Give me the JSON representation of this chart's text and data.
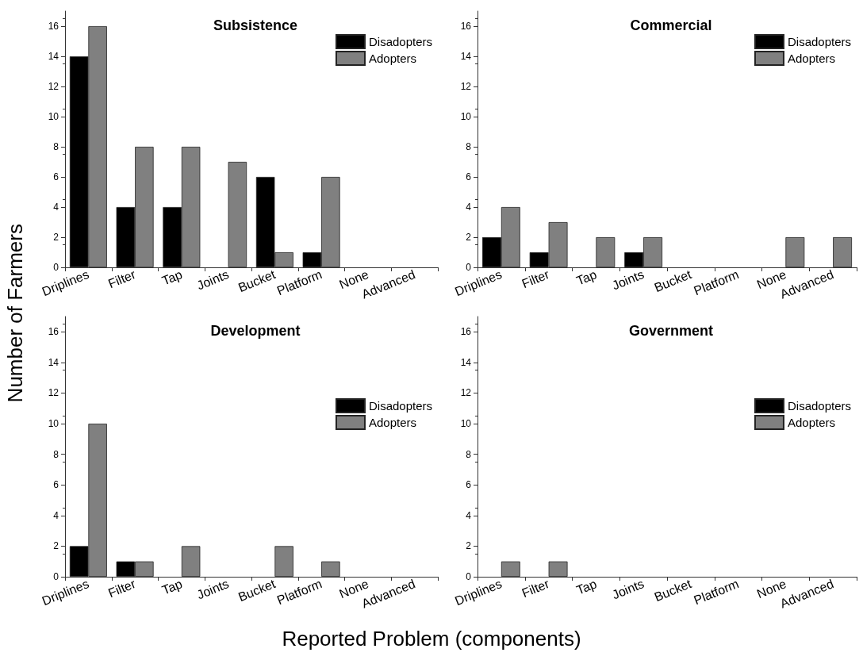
{
  "chart_data": [
    {
      "type": "bar",
      "title": "Subsistence",
      "ylabel": "Number of Farmers",
      "categories": [
        "Driplines",
        "Filter",
        "Tap",
        "Joints",
        "Bucket",
        "Platform",
        "None",
        "Advanced"
      ],
      "series": [
        {
          "name": "Disadopters",
          "color": "#000000",
          "values": [
            14,
            4,
            4,
            0,
            6,
            1,
            0,
            0
          ]
        },
        {
          "name": "Adopters",
          "color": "#808080",
          "values": [
            16,
            8,
            8,
            7,
            1,
            6,
            0,
            0
          ]
        }
      ],
      "ylim": [
        0,
        17
      ],
      "yticks": [
        0,
        2,
        4,
        6,
        8,
        10,
        12,
        14,
        16
      ],
      "grid": false,
      "legend": "top right"
    },
    {
      "type": "bar",
      "title": "Commercial",
      "categories": [
        "Driplines",
        "Filter",
        "Tap",
        "Joints",
        "Bucket",
        "Platform",
        "None",
        "Advanced"
      ],
      "series": [
        {
          "name": "Disadopters",
          "color": "#000000",
          "values": [
            2,
            1,
            0,
            1,
            0,
            0,
            0,
            0
          ]
        },
        {
          "name": "Adopters",
          "color": "#808080",
          "values": [
            4,
            3,
            2,
            2,
            0,
            0,
            2,
            2
          ]
        }
      ],
      "ylim": [
        0,
        17
      ],
      "yticks": [
        0,
        2,
        4,
        6,
        8,
        10,
        12,
        14,
        16
      ],
      "grid": false,
      "legend": "top right"
    },
    {
      "type": "bar",
      "title": "Development",
      "xlabel": "Reported Problem (components)",
      "categories": [
        "Driplines",
        "Filter",
        "Tap",
        "Joints",
        "Bucket",
        "Platform",
        "None",
        "Advanced"
      ],
      "series": [
        {
          "name": "Disadopters",
          "color": "#000000",
          "values": [
            2,
            1,
            0,
            0,
            0,
            0,
            0,
            0
          ]
        },
        {
          "name": "Adopters",
          "color": "#808080",
          "values": [
            10,
            1,
            2,
            0,
            2,
            1,
            0,
            0
          ]
        }
      ],
      "ylim": [
        0,
        17
      ],
      "yticks": [
        0,
        2,
        4,
        6,
        8,
        10,
        12,
        14,
        16
      ],
      "grid": false,
      "legend": "right"
    },
    {
      "type": "bar",
      "title": "Government",
      "categories": [
        "Driplines",
        "Filter",
        "Tap",
        "Joints",
        "Bucket",
        "Platform",
        "None",
        "Advanced"
      ],
      "series": [
        {
          "name": "Disadopters",
          "color": "#000000",
          "values": [
            0,
            0,
            0,
            0,
            0,
            0,
            0,
            0
          ]
        },
        {
          "name": "Adopters",
          "color": "#808080",
          "values": [
            1,
            1,
            0,
            0,
            0,
            0,
            0,
            0
          ]
        }
      ],
      "ylim": [
        0,
        17
      ],
      "yticks": [
        0,
        2,
        4,
        6,
        8,
        10,
        12,
        14,
        16
      ],
      "grid": false,
      "legend": "right"
    }
  ]
}
